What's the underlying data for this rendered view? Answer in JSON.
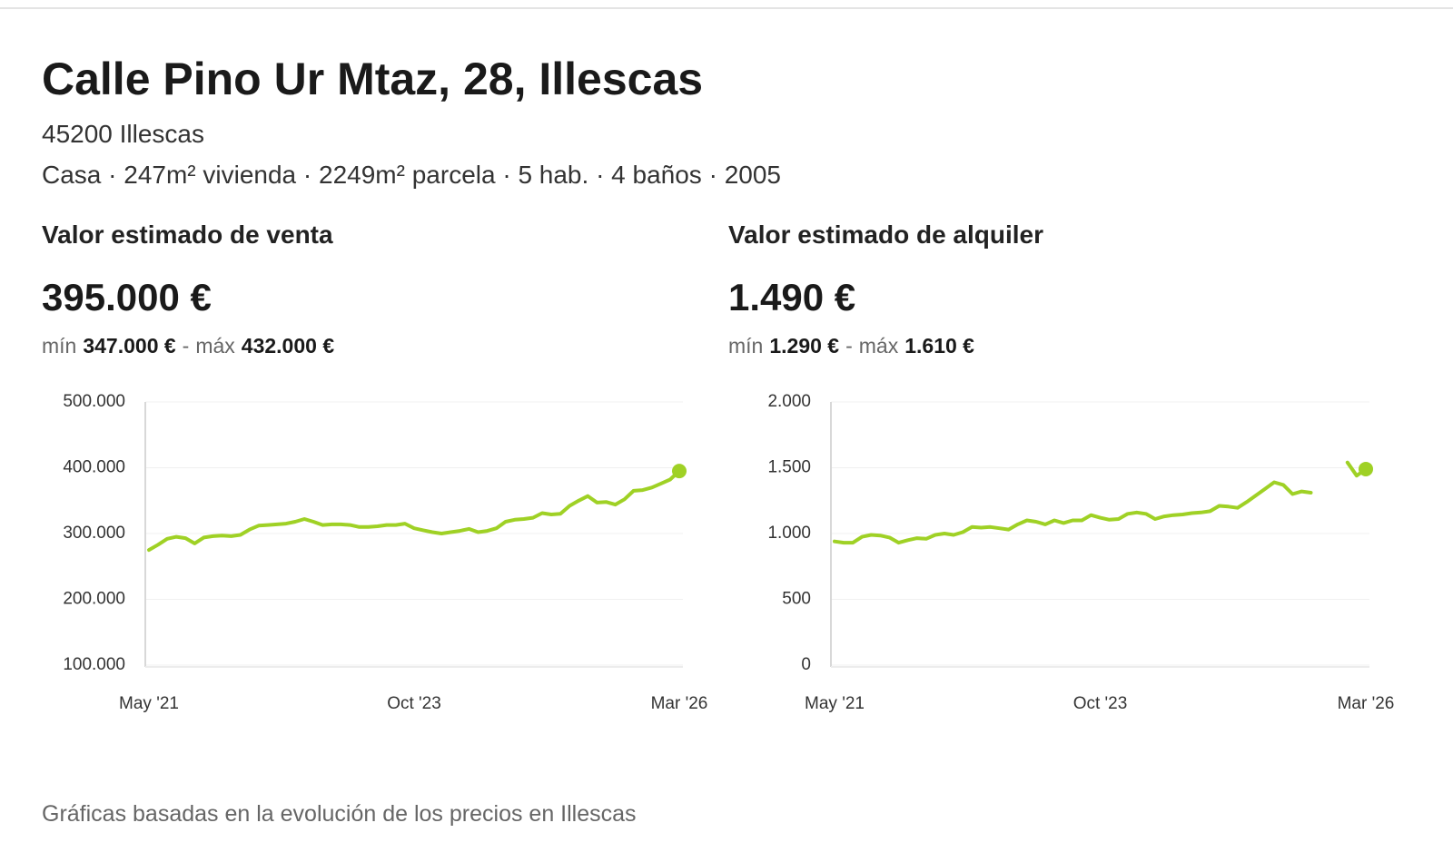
{
  "header": {
    "title": "Calle Pino Ur Mtaz, 28, Illescas",
    "location": "45200 Illescas",
    "details": "Casa · 247m² vivienda · 2249m² parcela · 5 hab. · 4 baños · 2005"
  },
  "chart_data": [
    {
      "type": "line",
      "title": "Valor estimado de venta",
      "estimate": "395.000 €",
      "min_label": "mín",
      "min": "347.000 €",
      "range_separator": "-",
      "max_label": "máx",
      "max": "432.000 €",
      "categories": [
        "May '21",
        null,
        null,
        null,
        null,
        null,
        null,
        null,
        null,
        null,
        null,
        null,
        null,
        null,
        null,
        null,
        null,
        null,
        null,
        null,
        null,
        null,
        null,
        null,
        null,
        null,
        null,
        null,
        null,
        "Oct '23",
        null,
        null,
        null,
        null,
        null,
        null,
        null,
        null,
        null,
        null,
        null,
        null,
        null,
        null,
        null,
        null,
        null,
        null,
        null,
        null,
        null,
        null,
        null,
        null,
        null,
        null,
        null,
        null,
        "Mar '26"
      ],
      "values": [
        275000,
        283000,
        292000,
        295000,
        293000,
        285000,
        294000,
        296000,
        297000,
        296000,
        298000,
        306000,
        312000,
        313000,
        314000,
        315000,
        318000,
        322000,
        318000,
        313000,
        314000,
        314000,
        313000,
        310000,
        310000,
        311000,
        313000,
        313000,
        315000,
        308000,
        305000,
        302000,
        300000,
        302000,
        304000,
        307000,
        302000,
        304000,
        308000,
        318000,
        321000,
        322000,
        324000,
        331000,
        329000,
        330000,
        342000,
        350000,
        357000,
        347000,
        348000,
        344000,
        352000,
        365000,
        366000,
        370000,
        376000,
        382000,
        395000
      ],
      "color": "#9fd125",
      "ylim": [
        100000,
        500000
      ],
      "yticks": [
        {
          "value": 100000,
          "label": "100.000"
        },
        {
          "value": 200000,
          "label": "200.000"
        },
        {
          "value": 300000,
          "label": "300.000"
        },
        {
          "value": 400000,
          "label": "400.000"
        },
        {
          "value": 500000,
          "label": "500.000"
        }
      ],
      "grid": true
    },
    {
      "type": "line",
      "title": "Valor estimado de alquiler",
      "estimate": "1.490 €",
      "min_label": "mín",
      "min": "1.290 €",
      "range_separator": "-",
      "max_label": "máx",
      "max": "1.610 €",
      "categories": [
        "May '21",
        null,
        null,
        null,
        null,
        null,
        null,
        null,
        null,
        null,
        null,
        null,
        null,
        null,
        null,
        null,
        null,
        null,
        null,
        null,
        null,
        null,
        null,
        null,
        null,
        null,
        null,
        null,
        null,
        "Oct '23",
        null,
        null,
        null,
        null,
        null,
        null,
        null,
        null,
        null,
        null,
        null,
        null,
        null,
        null,
        null,
        null,
        null,
        null,
        null,
        null,
        null,
        null,
        null,
        null,
        null,
        null,
        null,
        null,
        "Mar '26"
      ],
      "values": [
        940,
        930,
        930,
        975,
        990,
        985,
        970,
        930,
        950,
        965,
        960,
        990,
        1000,
        990,
        1010,
        1050,
        1045,
        1050,
        1040,
        1030,
        1070,
        1100,
        1090,
        1070,
        1100,
        1080,
        1100,
        1100,
        1140,
        1120,
        1105,
        1110,
        1150,
        1160,
        1150,
        1110,
        1130,
        1140,
        1145,
        1155,
        1160,
        1170,
        1210,
        1205,
        1195,
        1240,
        1290,
        1340,
        1390,
        1370,
        1300,
        1320,
        1310,
        null,
        null,
        null,
        1540,
        1440,
        1490
      ],
      "color": "#9fd125",
      "ylim": [
        0,
        2000
      ],
      "yticks": [
        0,
        500,
        {
          "value": 1000,
          "label": "1.000"
        },
        {
          "value": 1500,
          "label": "1.500"
        },
        {
          "value": 2000,
          "label": "2.000"
        }
      ],
      "grid": true
    }
  ],
  "footer": "Gráficas basadas en la evolución de los precios en Illescas"
}
